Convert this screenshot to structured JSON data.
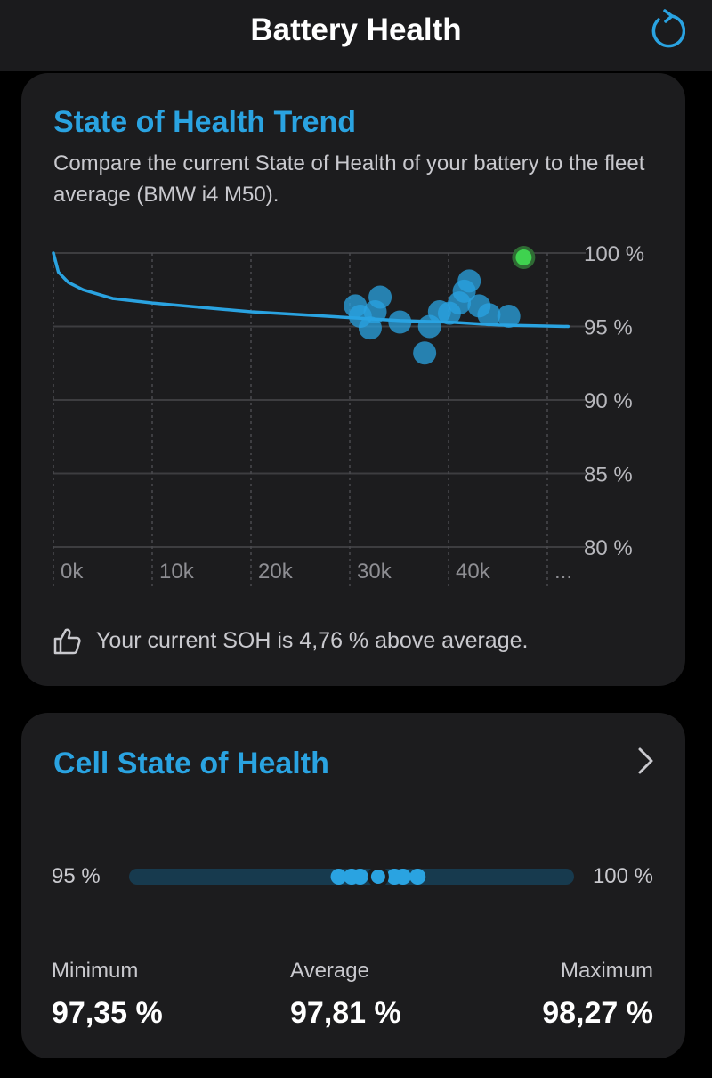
{
  "header": {
    "title": "Battery Health",
    "refresh_icon": "refresh-icon"
  },
  "colors": {
    "accent": "#2aa3e1",
    "current": "#3fd24f",
    "card": "#1c1c1e",
    "background": "#000000"
  },
  "trend_card": {
    "title": "State of Health Trend",
    "description": "Compare the current State of Health of your battery to the fleet average (BMW i4 M50).",
    "footer_icon": "thumbs-up-icon",
    "footer_text": "Your current SOH is 4,76 % above average."
  },
  "chart_data": {
    "type": "scatter",
    "x_ticks": [
      "0k",
      "10k",
      "20k",
      "30k",
      "40k",
      "..."
    ],
    "y_ticks": [
      "100 %",
      "95 %",
      "90 %",
      "85 %",
      "80 %"
    ],
    "xlim": [
      0,
      52500
    ],
    "ylim": [
      80,
      100
    ],
    "grid": true,
    "series": [
      {
        "kind": "line",
        "points": [
          [
            0,
            100
          ],
          [
            500,
            98.7
          ],
          [
            1500,
            98
          ],
          [
            3000,
            97.5
          ],
          [
            6000,
            96.9
          ],
          [
            10000,
            96.6
          ],
          [
            15000,
            96.3
          ],
          [
            20000,
            96.0
          ],
          [
            25000,
            95.8
          ],
          [
            30000,
            95.6
          ],
          [
            35000,
            95.4
          ],
          [
            40000,
            95.3
          ],
          [
            45000,
            95.1
          ],
          [
            52000,
            95.0
          ]
        ]
      },
      {
        "kind": "points",
        "points": [
          [
            30500,
            96.4
          ],
          [
            31000,
            95.7
          ],
          [
            33000,
            97.0
          ],
          [
            32500,
            96.0
          ],
          [
            35000,
            95.3
          ],
          [
            38000,
            95.0
          ],
          [
            37500,
            93.2
          ],
          [
            40000,
            95.9
          ],
          [
            41000,
            96.6
          ],
          [
            41500,
            97.4
          ],
          [
            42000,
            98.1
          ],
          [
            44000,
            95.8
          ],
          [
            46000,
            95.7
          ],
          [
            32000,
            94.9
          ],
          [
            39000,
            96.0
          ],
          [
            43000,
            96.4
          ]
        ]
      },
      {
        "kind": "current",
        "points": [
          [
            47500,
            99.7
          ]
        ]
      }
    ]
  },
  "cell_card": {
    "title": "Cell State of Health",
    "chevron_icon": "chevron-right-icon",
    "range_min_label": "95 %",
    "range_max_label": "100 %",
    "range_min": 95,
    "range_max": 100,
    "cell_values": [
      97.35,
      97.5,
      97.6,
      97.81,
      98.0,
      98.1,
      98.27
    ],
    "stats": [
      {
        "label": "Minimum",
        "value": "97,35 %"
      },
      {
        "label": "Average",
        "value": "97,81 %"
      },
      {
        "label": "Maximum",
        "value": "98,27 %"
      }
    ]
  }
}
